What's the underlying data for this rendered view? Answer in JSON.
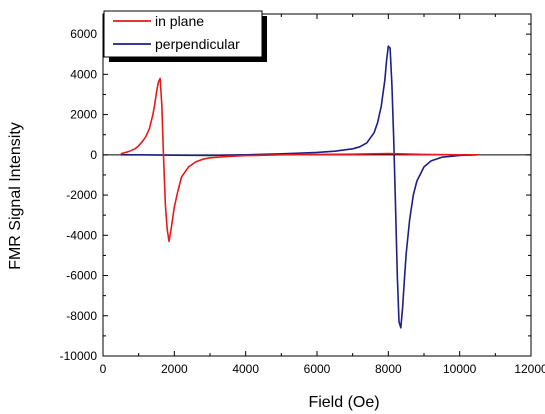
{
  "chart_data": {
    "type": "line",
    "xlabel": "Field (Oe)",
    "ylabel": "FMR Signal Intensity",
    "xlim": [
      0,
      12000
    ],
    "ylim": [
      -10000,
      7000
    ],
    "x_ticks": [
      0,
      2000,
      4000,
      6000,
      8000,
      10000,
      12000
    ],
    "y_ticks": [
      -10000,
      -8000,
      -6000,
      -4000,
      -2000,
      0,
      2000,
      4000,
      6000
    ],
    "x_tick_labels": [
      "0",
      "2000",
      "4000",
      "6000",
      "8000",
      "10000",
      "12000"
    ],
    "y_tick_labels": [
      "-10000",
      "-8000",
      "-6000",
      "-4000",
      "-2000",
      "0",
      "2000",
      "4000",
      "6000"
    ],
    "zero_line": true,
    "grid": false,
    "legend_position": "top-left",
    "series": [
      {
        "name": "in plane",
        "color": "#e8191b",
        "x": [
          500,
          700,
          900,
          1000,
          1100,
          1200,
          1300,
          1400,
          1450,
          1500,
          1550,
          1600,
          1650,
          1700,
          1750,
          1800,
          1850,
          1900,
          2000,
          2100,
          2200,
          2400,
          2600,
          2800,
          3000,
          3500,
          4000,
          5000,
          6000,
          7000,
          8000,
          9000,
          10000,
          10500
        ],
        "y": [
          50,
          150,
          300,
          450,
          650,
          900,
          1300,
          2000,
          2500,
          3100,
          3600,
          3800,
          2500,
          -200,
          -2500,
          -3700,
          -4300,
          -3800,
          -2600,
          -1800,
          -1100,
          -600,
          -350,
          -220,
          -150,
          -80,
          -40,
          0,
          20,
          30,
          60,
          20,
          0,
          0
        ]
      },
      {
        "name": "perpendicular",
        "color": "#1c1f86",
        "x": [
          500,
          1000,
          2000,
          3000,
          4000,
          5000,
          5500,
          6000,
          6500,
          7000,
          7200,
          7400,
          7600,
          7700,
          7800,
          7900,
          7950,
          8000,
          8050,
          8100,
          8150,
          8200,
          8250,
          8300,
          8350,
          8400,
          8450,
          8500,
          8600,
          8700,
          8800,
          9000,
          9200,
          9500,
          10000,
          10500
        ],
        "y": [
          0,
          0,
          -20,
          -30,
          0,
          50,
          80,
          120,
          180,
          300,
          400,
          600,
          1100,
          1600,
          2400,
          3700,
          4700,
          5400,
          5300,
          3500,
          800,
          -2500,
          -6000,
          -8300,
          -8600,
          -7600,
          -6200,
          -4900,
          -3200,
          -2000,
          -1300,
          -600,
          -300,
          -120,
          -30,
          0
        ]
      }
    ]
  }
}
